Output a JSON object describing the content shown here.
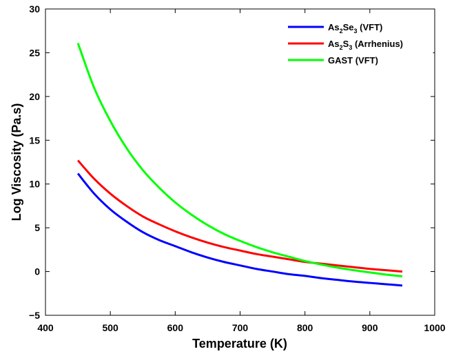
{
  "chart_data": {
    "type": "line",
    "xlabel": "Temperature (K)",
    "ylabel": "Log Viscosity (Pa.s)",
    "xlim": [
      400,
      1000
    ],
    "ylim": [
      -5,
      30
    ],
    "xticks": [
      "400",
      "500",
      "600",
      "700",
      "800",
      "900",
      "1000"
    ],
    "yticks": [
      "−5",
      "0",
      "5",
      "10",
      "15",
      "20",
      "25",
      "30"
    ],
    "grid": false,
    "legend_position": "top-right",
    "series": [
      {
        "name": "As2Se3 (VFT)",
        "legend": {
          "a": "As",
          "a_sub": "2",
          "b": "Se",
          "b_sub": "3",
          "rest": " (VFT)"
        },
        "color": "#0000ff",
        "x": [
          450,
          475,
          500,
          525,
          550,
          575,
          600,
          625,
          650,
          675,
          700,
          725,
          750,
          775,
          800,
          825,
          850,
          875,
          900,
          925,
          950
        ],
        "y": [
          11.2,
          8.9,
          7.1,
          5.7,
          4.5,
          3.6,
          2.9,
          2.2,
          1.6,
          1.1,
          0.7,
          0.3,
          0.0,
          -0.3,
          -0.5,
          -0.75,
          -0.95,
          -1.15,
          -1.3,
          -1.45,
          -1.6
        ]
      },
      {
        "name": "As2S3 (Arrhenius)",
        "legend": {
          "a": "As",
          "a_sub": "2",
          "b": "S",
          "b_sub": "3",
          "rest": " (Arrhenius)"
        },
        "color": "#ff0000",
        "x": [
          450,
          475,
          500,
          525,
          550,
          575,
          600,
          625,
          650,
          675,
          700,
          725,
          750,
          775,
          800,
          825,
          850,
          875,
          900,
          925,
          950
        ],
        "y": [
          12.7,
          10.6,
          8.9,
          7.5,
          6.3,
          5.4,
          4.6,
          3.9,
          3.3,
          2.8,
          2.4,
          2.0,
          1.7,
          1.4,
          1.1,
          0.9,
          0.7,
          0.5,
          0.3,
          0.15,
          0.0
        ]
      },
      {
        "name": "GAST (VFT)",
        "legend": {
          "a": "GAST (VFT)",
          "a_sub": "",
          "b": "",
          "b_sub": "",
          "rest": ""
        },
        "color": "#00ff00",
        "x": [
          450,
          475,
          500,
          525,
          550,
          575,
          600,
          625,
          650,
          675,
          700,
          725,
          750,
          775,
          800,
          825,
          850,
          875,
          900,
          925,
          950
        ],
        "y": [
          26.1,
          21.0,
          17.2,
          14.1,
          11.6,
          9.6,
          7.9,
          6.5,
          5.3,
          4.3,
          3.5,
          2.8,
          2.2,
          1.7,
          1.2,
          0.8,
          0.45,
          0.15,
          -0.1,
          -0.35,
          -0.55
        ]
      }
    ]
  }
}
